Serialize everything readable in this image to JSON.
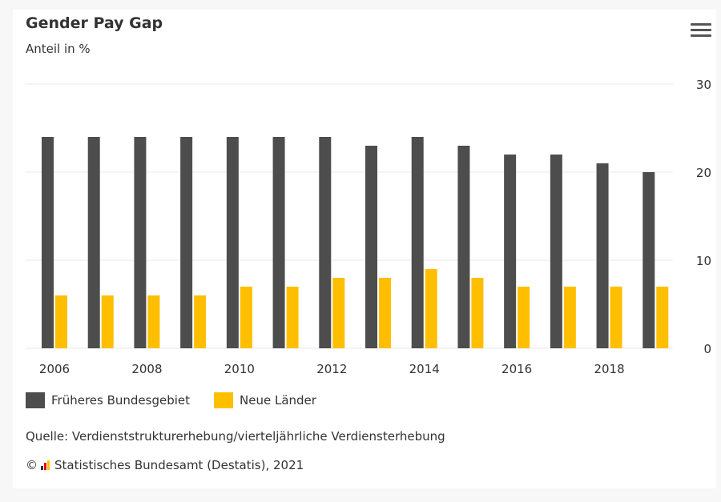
{
  "header": {
    "title": "Gender Pay Gap",
    "subtitle": "Anteil in %",
    "menu_icon": "hamburger-menu-icon"
  },
  "colors": {
    "series1": "#4d4d4d",
    "series2": "#ffbf00",
    "grid": "#eaeaea"
  },
  "chart_data": {
    "type": "bar",
    "title": "Gender Pay Gap",
    "subtitle": "Anteil in %",
    "categories": [
      "2006",
      "2007",
      "2008",
      "2009",
      "2010",
      "2011",
      "2012",
      "2013",
      "2014",
      "2015",
      "2016",
      "2017",
      "2018",
      "2019"
    ],
    "x_tick_labels": [
      "2006",
      "2008",
      "2010",
      "2012",
      "2014",
      "2016",
      "2018"
    ],
    "y_ticks": [
      "0",
      "10",
      "20",
      "30"
    ],
    "ylim": [
      0,
      30
    ],
    "y_axis_position": "right",
    "grid": true,
    "legend_position": "bottom-left",
    "series": [
      {
        "name": "Früheres Bundesgebiet",
        "color": "#4d4d4d",
        "values": [
          24,
          24,
          24,
          24,
          24,
          24,
          24,
          23,
          24,
          23,
          22,
          22,
          21,
          20
        ]
      },
      {
        "name": "Neue Länder",
        "color": "#ffbf00",
        "values": [
          6,
          6,
          6,
          6,
          7,
          7,
          8,
          8,
          9,
          8,
          7,
          7,
          7,
          7
        ]
      }
    ]
  },
  "legend": {
    "items": [
      {
        "label": "Früheres Bundesgebiet",
        "color": "#4d4d4d"
      },
      {
        "label": "Neue Länder",
        "color": "#ffbf00"
      }
    ]
  },
  "footer": {
    "source": "Quelle: Verdienststrukturerhebung/vierteljährliche Verdiensterhebung",
    "copyright_symbol": "©",
    "copyright_text": "Statistisches Bundesamt (Destatis), 2021",
    "logo_icon": "destatis-logo-icon"
  }
}
